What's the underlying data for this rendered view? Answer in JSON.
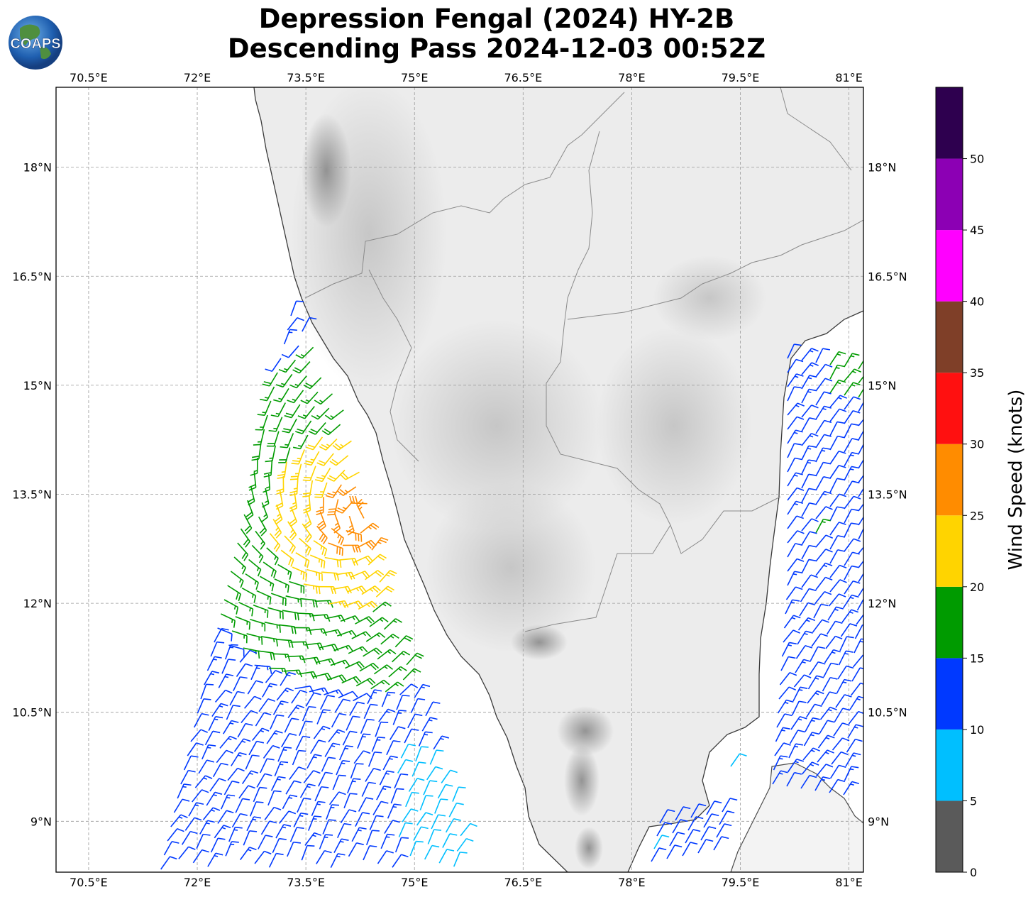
{
  "title": {
    "line1": "Depression Fengal (2024) HY-2B",
    "line2": "Descending Pass 2024-12-03 00:52Z"
  },
  "logo": {
    "text": "COAPS"
  },
  "map": {
    "lon_range": [
      70.05,
      81.2
    ],
    "lat_range": [
      8.3,
      19.1
    ],
    "grid": true,
    "lon_ticks": [
      70.5,
      72,
      73.5,
      75,
      76.5,
      78,
      79.5,
      81
    ],
    "lon_labels": [
      "70.5°E",
      "72°E",
      "73.5°E",
      "75°E",
      "76.5°E",
      "78°E",
      "79.5°E",
      "81°E"
    ],
    "lat_ticks": [
      9,
      10.5,
      12,
      13.5,
      15,
      16.5,
      18
    ],
    "lat_labels": [
      "9°N",
      "10.5°N",
      "12°N",
      "13.5°N",
      "15°N",
      "16.5°N",
      "18°N"
    ]
  },
  "colorbar": {
    "label": "Wind Speed (knots)",
    "boundaries": [
      0,
      5,
      10,
      15,
      20,
      25,
      30,
      35,
      40,
      45,
      50,
      55
    ],
    "tick_labels": [
      "0",
      "5",
      "10",
      "15",
      "20",
      "25",
      "30",
      "35",
      "40",
      "45",
      "50"
    ],
    "colors": [
      "#5a5a5a",
      "#00bfff",
      "#0039ff",
      "#009b00",
      "#ffd400",
      "#ff8c00",
      "#ff1010",
      "#7f3f28",
      "#ff00ff",
      "#8c00b4",
      "#2e004f"
    ]
  }
}
